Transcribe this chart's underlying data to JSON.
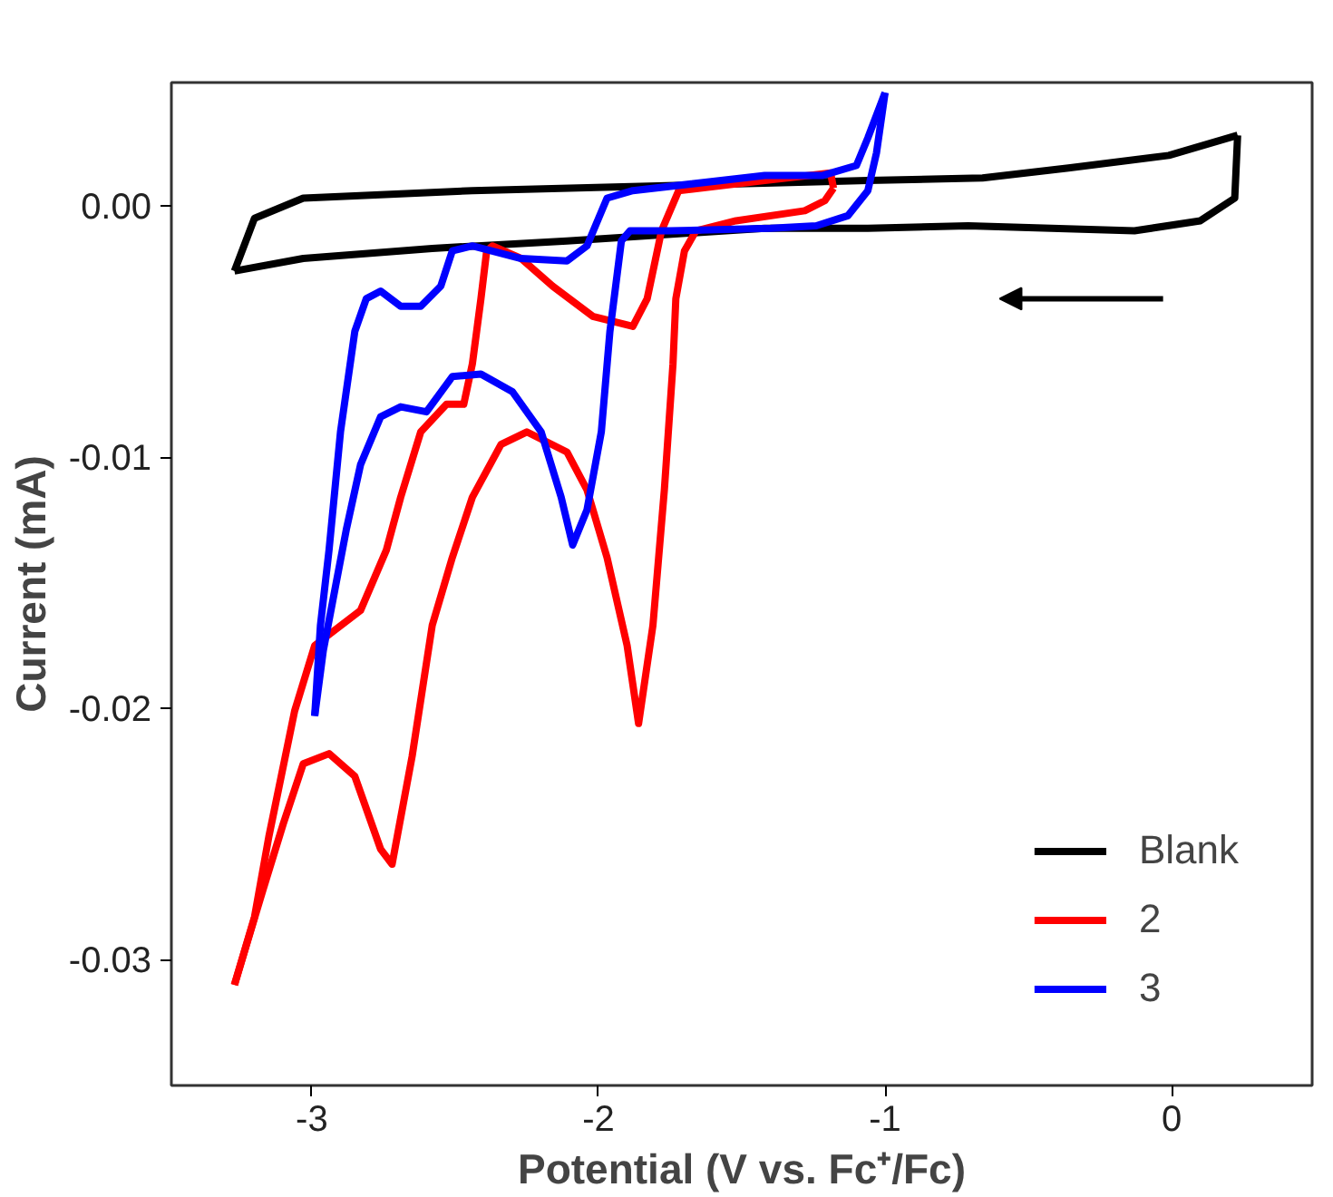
{
  "chart_data": {
    "type": "line",
    "xlabel": "Potential (V vs. Fc⁺/Fc)",
    "ylabel": "Current (mA)",
    "xlim": [
      -3.49,
      0.49
    ],
    "ylim": [
      -0.035,
      0.0049
    ],
    "xticks": [
      -3,
      -2,
      -1,
      0
    ],
    "yticks": [
      {
        "value": 0,
        "label": "0.00"
      },
      {
        "value": -0.01,
        "label": "-0.01"
      },
      {
        "value": -0.02,
        "label": "-0.02"
      },
      {
        "value": -0.03,
        "label": "-0.03"
      }
    ],
    "grid": false,
    "legend": "bottom right",
    "marker": "none",
    "line_style": "solid",
    "series": [
      {
        "name": "Blank",
        "color": "#000000",
        "x": [
          0.23,
          -0.01,
          -0.36,
          -0.66,
          -1.06,
          -1.42,
          -2.44,
          -3.03,
          -3.2,
          -3.27
        ],
        "values": [
          0.0028,
          0.002,
          0.0015,
          0.0011,
          0.001,
          0.0009,
          0.0006,
          0.0003,
          -0.0005,
          -0.0026
        ]
      },
      {
        "color": "#000000",
        "x": [
          -3.27,
          -3.03,
          -2.58,
          -2.11,
          -1.42,
          -1.06,
          -0.71,
          -0.13,
          0.1,
          0.22,
          0.23
        ],
        "values": [
          -0.0026,
          -0.0021,
          -0.0017,
          -0.0014,
          -0.0009,
          -0.0009,
          -0.0008,
          -0.001,
          -0.0006,
          0.0003,
          0.0028
        ]
      },
      {
        "name": "2",
        "color": "#ff0000",
        "x": [
          -1.18,
          -1.21,
          -1.28,
          -1.52,
          -1.66,
          -1.7,
          -1.73,
          -1.74,
          -1.77,
          -1.81,
          -1.86,
          -1.9,
          -1.97,
          -2.04,
          -2.11,
          -2.25,
          -2.34,
          -2.44,
          -2.51,
          -2.58,
          -2.65,
          -2.72,
          -2.76,
          -2.85,
          -2.94,
          -3.03,
          -3.1,
          -3.17,
          -3.27
        ],
        "values": [
          0.0007,
          0.0002,
          -0.0002,
          -0.0006,
          -0.001,
          -0.0018,
          -0.0037,
          -0.0063,
          -0.0113,
          -0.0167,
          -0.0206,
          -0.0175,
          -0.014,
          -0.0113,
          -0.0098,
          -0.009,
          -0.0095,
          -0.0116,
          -0.014,
          -0.0167,
          -0.0219,
          -0.0262,
          -0.0256,
          -0.0227,
          -0.0218,
          -0.0222,
          -0.0246,
          -0.0272,
          -0.031
        ]
      },
      {
        "color": "#ff0000",
        "x": [
          -3.27,
          -3.2,
          -3.15,
          -3.06,
          -2.99,
          -2.83,
          -2.74,
          -2.69,
          -2.62,
          -2.53,
          -2.47,
          -2.44,
          -2.41,
          -2.39,
          -2.37,
          -2.27,
          -2.16,
          -2.02,
          -1.88,
          -1.83,
          -1.78,
          -1.72,
          -1.42,
          -1.19,
          -1.18
        ],
        "values": [
          -0.031,
          -0.0283,
          -0.0251,
          -0.0201,
          -0.0175,
          -0.0161,
          -0.0137,
          -0.0116,
          -0.009,
          -0.0079,
          -0.0079,
          -0.0063,
          -0.0037,
          -0.0018,
          -0.0016,
          -0.0021,
          -0.0032,
          -0.0044,
          -0.0048,
          -0.0037,
          -0.001,
          0.0006,
          0.001,
          0.0013,
          0.0007
        ]
      },
      {
        "name": "3",
        "color": "#0000ff",
        "x": [
          -1.0,
          -1.03,
          -1.06,
          -1.13,
          -1.24,
          -1.4,
          -1.75,
          -1.89,
          -1.92,
          -1.96,
          -1.99,
          -2.04,
          -2.09,
          -2.13,
          -2.2,
          -2.3,
          -2.41,
          -2.51,
          -2.6,
          -2.69,
          -2.76,
          -2.83,
          -2.88,
          -2.92,
          -2.96,
          -2.99
        ],
        "values": [
          0.0045,
          0.0021,
          0.0006,
          -0.0004,
          -0.0008,
          -0.0009,
          -0.001,
          -0.001,
          -0.0014,
          -0.005,
          -0.009,
          -0.0121,
          -0.0135,
          -0.0116,
          -0.009,
          -0.0074,
          -0.0067,
          -0.0068,
          -0.0082,
          -0.008,
          -0.0084,
          -0.0103,
          -0.0129,
          -0.0153,
          -0.0177,
          -0.0203
        ]
      },
      {
        "color": "#0000ff",
        "x": [
          -2.99,
          -2.97,
          -2.94,
          -2.9,
          -2.85,
          -2.81,
          -2.76,
          -2.69,
          -2.62,
          -2.55,
          -2.51,
          -2.44,
          -2.27,
          -2.11,
          -2.04,
          -1.97,
          -1.88,
          -1.42,
          -1.22,
          -1.1,
          -1.06,
          -1.0
        ],
        "values": [
          -0.0203,
          -0.0167,
          -0.0137,
          -0.009,
          -0.005,
          -0.0037,
          -0.0034,
          -0.004,
          -0.004,
          -0.0032,
          -0.0018,
          -0.0016,
          -0.0021,
          -0.0022,
          -0.0016,
          0.0003,
          0.0006,
          0.0012,
          0.0012,
          0.0016,
          0.0027,
          0.0045
        ]
      }
    ]
  }
}
